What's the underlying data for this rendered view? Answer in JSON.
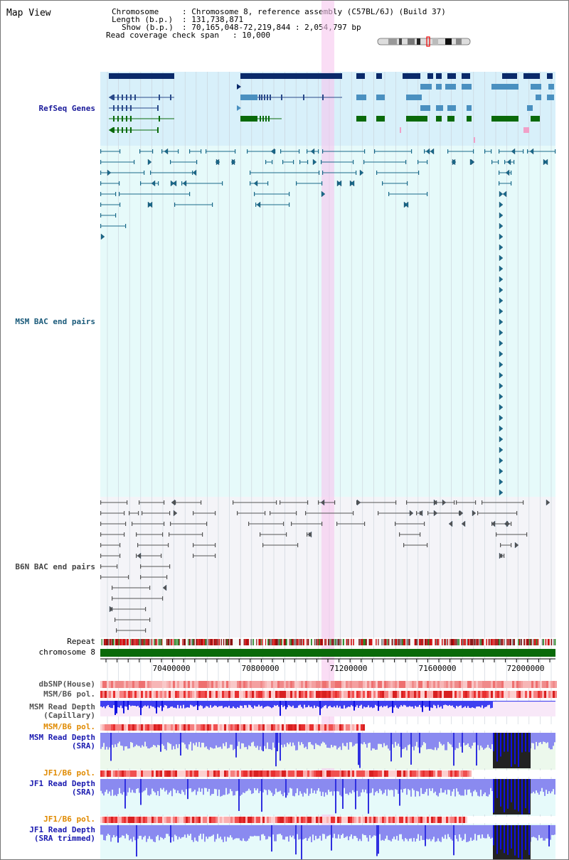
{
  "page_title": "Map View",
  "info": {
    "chromosome_key": "Chromosome",
    "chromosome_value": ": Chromosome 8, reference assembly (C57BL/6J) (Build 37)",
    "length_key": "Length (b.p.)",
    "length_value": ": 131,738,871",
    "show_key": "Show (b.p.)",
    "show_value": ": 70,165,048-72,219,844 : 2,054,797 bp",
    "span_key": "Read coverage check span",
    "span_value": ": 10,000"
  },
  "tracks": {
    "refseq": {
      "label": "RefSeq Genes",
      "color": "#1a1a9a"
    },
    "msm_bac": {
      "label": "MSM BAC end pairs",
      "color": "#1a5a7a"
    },
    "b6n_bac": {
      "label": "B6N BAC end pairs",
      "color": "#444444"
    },
    "repeat": {
      "label": "Repeat"
    },
    "chromosome": {
      "label": "chromosome 8",
      "color": "#0a6a0a"
    },
    "dbsnp": {
      "label": "dbSNP(House)"
    },
    "msm_b6_pol": {
      "label": "MSM/B6 pol."
    },
    "msm_depth_cap": {
      "line1": "MSM Read Depth",
      "line2": "(Capillary)"
    },
    "msm_b6_pol2": {
      "label": "MSM/B6 pol.",
      "color": "#e08a00"
    },
    "msm_depth_sra": {
      "line1": "MSM Read Depth",
      "line2": "(SRA)",
      "color": "#1a1ab0"
    },
    "jf1_b6_pol": {
      "label": "JF1/B6 pol.",
      "color": "#e08a00"
    },
    "jf1_depth_sra": {
      "line1": "JF1 Read Depth",
      "line2": "(SRA)",
      "color": "#1a1ab0"
    },
    "jf1_b6_pol2": {
      "label": "JF1/B6 pol.",
      "color": "#e08a00"
    },
    "jf1_depth_trim": {
      "line1": "JF1 Read Depth",
      "line2": "(SRA trimmed)",
      "color": "#1a1ab0"
    }
  },
  "axis": {
    "ticks": [
      "70400000",
      "70800000",
      "71200000",
      "71600000",
      "72000000"
    ]
  }
}
